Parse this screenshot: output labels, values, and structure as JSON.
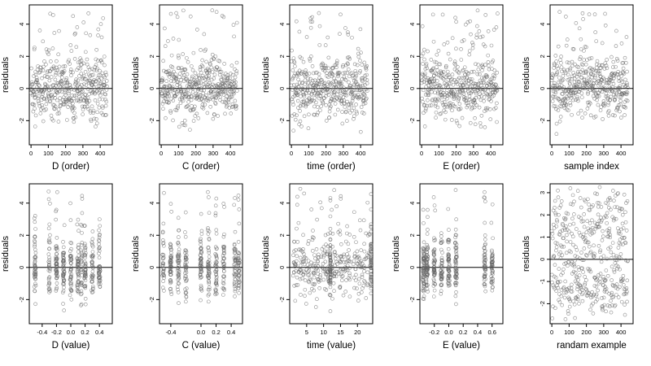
{
  "chart_data": [
    {
      "type": "scatter",
      "xlabel": "D (order)",
      "ylabel": "residuals",
      "xlim": [
        -10,
        470
      ],
      "ylim": [
        -3.5,
        5.2
      ],
      "xticks": [
        0,
        100,
        200,
        300,
        400
      ],
      "xtick_labels": [
        "0",
        "100",
        "200",
        "300",
        "400"
      ],
      "yticks": [
        -2,
        0,
        2,
        4
      ],
      "ytick_labels": [
        "-2",
        "0",
        "2",
        "4"
      ],
      "hline": 0,
      "dist": "order"
    },
    {
      "type": "scatter",
      "xlabel": "C (order)",
      "ylabel": "residuals",
      "xlim": [
        -10,
        470
      ],
      "ylim": [
        -3.5,
        5.2
      ],
      "xticks": [
        0,
        100,
        200,
        300,
        400
      ],
      "xtick_labels": [
        "0",
        "100",
        "200",
        "300",
        "400"
      ],
      "yticks": [
        -2,
        0,
        2,
        4
      ],
      "ytick_labels": [
        "-2",
        "0",
        "2",
        "4"
      ],
      "hline": 0,
      "dist": "order"
    },
    {
      "type": "scatter",
      "xlabel": "time (order)",
      "ylabel": "residuals",
      "xlim": [
        -10,
        470
      ],
      "ylim": [
        -3.5,
        5.2
      ],
      "xticks": [
        0,
        100,
        200,
        300,
        400
      ],
      "xtick_labels": [
        "0",
        "100",
        "200",
        "300",
        "400"
      ],
      "yticks": [
        -2,
        0,
        2,
        4
      ],
      "ytick_labels": [
        "-2",
        "0",
        "2",
        "4"
      ],
      "hline": 0,
      "dist": "order"
    },
    {
      "type": "scatter",
      "xlabel": "E (order)",
      "ylabel": "residuals",
      "xlim": [
        -10,
        470
      ],
      "ylim": [
        -3.5,
        5.2
      ],
      "xticks": [
        0,
        100,
        200,
        300,
        400
      ],
      "xtick_labels": [
        "0",
        "100",
        "200",
        "300",
        "400"
      ],
      "yticks": [
        -2,
        0,
        2,
        4
      ],
      "ytick_labels": [
        "-2",
        "0",
        "2",
        "4"
      ],
      "hline": 0,
      "dist": "order"
    },
    {
      "type": "scatter",
      "xlabel": "sample index",
      "ylabel": "residuals",
      "xlim": [
        -10,
        470
      ],
      "ylim": [
        -3.5,
        5.2
      ],
      "xticks": [
        0,
        100,
        200,
        300,
        400
      ],
      "xtick_labels": [
        "0",
        "100",
        "200",
        "300",
        "400"
      ],
      "yticks": [
        -2,
        0,
        2,
        4
      ],
      "ytick_labels": [
        "-2",
        "0",
        "2",
        "4"
      ],
      "hline": 0,
      "dist": "order"
    },
    {
      "type": "scatter",
      "xlabel": "D (value)",
      "ylabel": "residuals",
      "xlim": [
        -0.58,
        0.58
      ],
      "ylim": [
        -3.5,
        5.2
      ],
      "xticks": [
        -0.4,
        -0.2,
        0.0,
        0.2,
        0.4
      ],
      "xtick_labels": [
        "-0.4",
        "-0.2",
        "0.0",
        "0.2",
        "0.4"
      ],
      "yticks": [
        -2,
        0,
        2,
        4
      ],
      "ytick_labels": [
        "-2",
        "0",
        "2",
        "4"
      ],
      "hline": 0,
      "dist": "cluster",
      "centers": [
        -0.5,
        -0.3,
        -0.2,
        -0.1,
        0.0,
        0.1,
        0.15,
        0.2,
        0.3,
        0.4
      ]
    },
    {
      "type": "scatter",
      "xlabel": "C (value)",
      "ylabel": "residuals",
      "xlim": [
        -0.55,
        0.55
      ],
      "ylim": [
        -3.5,
        5.2
      ],
      "xticks": [
        -0.4,
        0.0,
        0.2,
        0.4
      ],
      "xtick_labels": [
        "-0.4",
        "0.0",
        "0.2",
        "0.4"
      ],
      "yticks": [
        -2,
        0,
        2,
        4
      ],
      "ytick_labels": [
        "-2",
        "0",
        "2",
        "4"
      ],
      "hline": 0,
      "dist": "cluster",
      "centers": [
        -0.5,
        -0.4,
        -0.3,
        -0.2,
        0.0,
        0.1,
        0.2,
        0.3,
        0.45,
        0.5
      ]
    },
    {
      "type": "scatter",
      "xlabel": "time (value)",
      "ylabel": "residuals",
      "xlim": [
        0,
        24.5
      ],
      "ylim": [
        -3.5,
        5.2
      ],
      "xticks": [
        5,
        10,
        15,
        20
      ],
      "xtick_labels": [
        "5",
        "10",
        "15",
        "20"
      ],
      "yticks": [
        -2,
        0,
        2,
        4
      ],
      "ytick_labels": [
        "-2",
        "0",
        "2",
        "4"
      ],
      "hline": 0,
      "dist": "uniform",
      "centers": [
        12,
        24
      ]
    },
    {
      "type": "scatter",
      "xlabel": "E (value)",
      "ylabel": "residuals",
      "xlim": [
        -0.4,
        0.75
      ],
      "ylim": [
        -3.5,
        5.2
      ],
      "xticks": [
        -0.2,
        0.0,
        0.2,
        0.4,
        0.6
      ],
      "xtick_labels": [
        "-0.2",
        "0.0",
        "0.2",
        "0.4",
        "0.6"
      ],
      "yticks": [
        -2,
        0,
        2,
        4
      ],
      "ytick_labels": [
        "-2",
        "0",
        "2",
        "4"
      ],
      "hline": 0,
      "dist": "cluster",
      "centers": [
        -0.35,
        -0.3,
        -0.2,
        -0.1,
        0.0,
        0.1,
        0.5,
        0.6
      ]
    },
    {
      "type": "scatter",
      "xlabel": "randam example",
      "ylabel": "residuals",
      "xlim": [
        -10,
        470
      ],
      "ylim": [
        -2.9,
        3.4
      ],
      "xticks": [
        0,
        100,
        200,
        300,
        400
      ],
      "xtick_labels": [
        "0",
        "100",
        "200",
        "300",
        "400"
      ],
      "yticks": [
        -2,
        -1,
        0,
        1,
        2,
        3
      ],
      "ytick_labels": [
        "-2",
        "-1",
        "0",
        "1",
        "2",
        "3"
      ],
      "hline": 0,
      "dist": "random"
    }
  ]
}
